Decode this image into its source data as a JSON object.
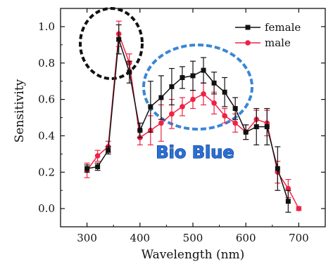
{
  "chart_data": {
    "type": "line",
    "xlabel": "Wavelength (nm)",
    "ylabel": "Sensitivity",
    "xlim": [
      250,
      750
    ],
    "ylim": [
      -0.1,
      1.1
    ],
    "xticks": [
      300,
      400,
      500,
      600,
      700
    ],
    "yticks": [
      0.0,
      0.2,
      0.4,
      0.6,
      0.8,
      1.0
    ],
    "grid": false,
    "legend_position": "top-right",
    "series": [
      {
        "name": "female",
        "color": "#111111",
        "marker": "square",
        "x": [
          300,
          320,
          340,
          360,
          380,
          400,
          420,
          440,
          460,
          480,
          500,
          520,
          540,
          560,
          580,
          600,
          620,
          640,
          660,
          680
        ],
        "y": [
          0.22,
          0.23,
          0.32,
          0.93,
          0.75,
          0.43,
          0.56,
          0.61,
          0.67,
          0.72,
          0.73,
          0.76,
          0.69,
          0.64,
          0.55,
          0.42,
          0.45,
          0.45,
          0.22,
          0.04
        ],
        "err": [
          0.02,
          0.02,
          0.02,
          0.08,
          0.06,
          0.04,
          0.14,
          0.12,
          0.1,
          0.06,
          0.08,
          0.07,
          0.06,
          0.08,
          0.06,
          0.04,
          0.1,
          0.1,
          0.12,
          0.06
        ]
      },
      {
        "name": "male",
        "color": "#ee2244",
        "marker": "circle",
        "x": [
          300,
          320,
          340,
          360,
          380,
          400,
          420,
          440,
          460,
          480,
          500,
          520,
          540,
          560,
          580,
          600,
          620,
          640,
          660,
          680,
          700
        ],
        "y": [
          0.21,
          0.29,
          0.34,
          0.96,
          0.8,
          0.39,
          0.43,
          0.47,
          0.52,
          0.56,
          0.6,
          0.63,
          0.58,
          0.51,
          0.47,
          0.42,
          0.49,
          0.47,
          0.2,
          0.11,
          0.0
        ],
        "err": [
          0.04,
          0.03,
          0.03,
          0.07,
          0.05,
          0.04,
          0.08,
          0.1,
          0.08,
          0.05,
          0.05,
          0.06,
          0.06,
          0.04,
          0.05,
          0.04,
          0.05,
          0.07,
          0.06,
          0.05,
          0.01
        ]
      }
    ],
    "annotations": [
      {
        "text": "Bio Blue",
        "color": "#2a6fd6"
      }
    ]
  }
}
